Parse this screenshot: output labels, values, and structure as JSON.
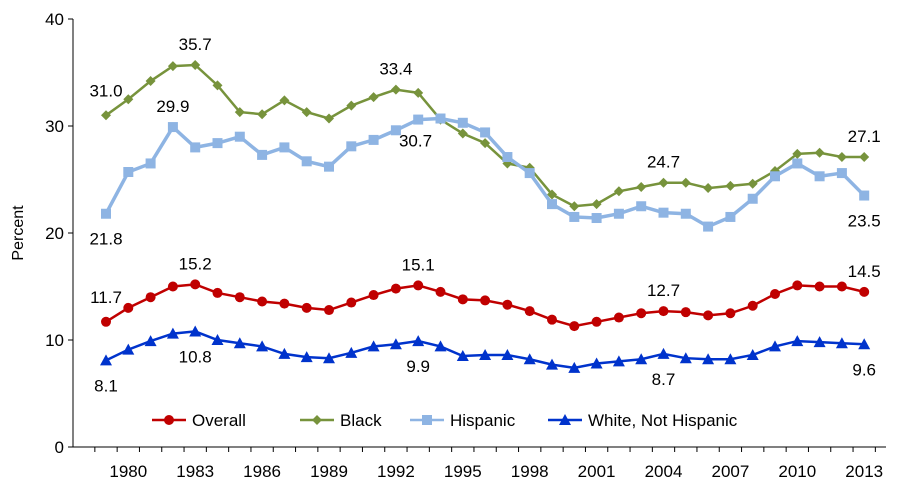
{
  "chart_data": {
    "type": "line",
    "title": "",
    "xlabel": "",
    "ylabel": "Percent",
    "ylim": [
      0,
      40
    ],
    "yticks": [
      0,
      10,
      20,
      30,
      40
    ],
    "xtick_labels": [
      "1980",
      "1983",
      "1986",
      "1989",
      "1992",
      "1995",
      "1998",
      "2001",
      "2004",
      "2007",
      "2010",
      "2013"
    ],
    "x": [
      1979,
      1980,
      1981,
      1982,
      1983,
      1984,
      1985,
      1986,
      1987,
      1988,
      1989,
      1990,
      1991,
      1992,
      1993,
      1994,
      1995,
      1996,
      1997,
      1998,
      1999,
      2000,
      2001,
      2002,
      2003,
      2004,
      2005,
      2006,
      2007,
      2008,
      2009,
      2010,
      2011,
      2012,
      2013
    ],
    "grid": false,
    "legend_position": "bottom",
    "series": [
      {
        "name": "Overall",
        "color": "#C00000",
        "marker": "circle",
        "values": [
          11.7,
          13.0,
          14.0,
          15.0,
          15.2,
          14.4,
          14.0,
          13.6,
          13.4,
          13.0,
          12.8,
          13.5,
          14.2,
          14.8,
          15.1,
          14.5,
          13.8,
          13.7,
          13.3,
          12.7,
          11.9,
          11.3,
          11.7,
          12.1,
          12.5,
          12.7,
          12.6,
          12.3,
          12.5,
          13.2,
          14.3,
          15.1,
          15.0,
          15.0,
          14.5
        ],
        "labels": [
          {
            "year": 1979,
            "text": "11.7",
            "pos": "above"
          },
          {
            "year": 1983,
            "text": "15.2",
            "pos": "above"
          },
          {
            "year": 1993,
            "text": "15.1",
            "pos": "above"
          },
          {
            "year": 2004,
            "text": "12.7",
            "pos": "above"
          },
          {
            "year": 2013,
            "text": "14.5",
            "pos": "above"
          }
        ]
      },
      {
        "name": "Black",
        "color": "#77933C",
        "marker": "diamond",
        "values": [
          31.0,
          32.5,
          34.2,
          35.6,
          35.7,
          33.8,
          31.3,
          31.1,
          32.4,
          31.3,
          30.7,
          31.9,
          32.7,
          33.4,
          33.1,
          30.6,
          29.3,
          28.4,
          26.5,
          26.1,
          23.6,
          22.5,
          22.7,
          23.9,
          24.3,
          24.7,
          24.7,
          24.2,
          24.4,
          24.6,
          25.8,
          27.4,
          27.5,
          27.1,
          27.1
        ],
        "labels": [
          {
            "year": 1979,
            "text": "31.0",
            "pos": "above"
          },
          {
            "year": 1983,
            "text": "35.7",
            "pos": "above"
          },
          {
            "year": 1992,
            "text": "33.4",
            "pos": "above"
          },
          {
            "year": 2004,
            "text": "24.7",
            "pos": "above"
          },
          {
            "year": 2013,
            "text": "27.1",
            "pos": "above"
          }
        ]
      },
      {
        "name": "Hispanic",
        "color": "#8EB4E3",
        "marker": "square",
        "values": [
          21.8,
          25.7,
          26.5,
          29.9,
          28.0,
          28.4,
          29.0,
          27.3,
          28.0,
          26.7,
          26.2,
          28.1,
          28.7,
          29.6,
          30.6,
          30.7,
          30.3,
          29.4,
          27.1,
          25.6,
          22.7,
          21.5,
          21.4,
          21.8,
          22.5,
          21.9,
          21.8,
          20.6,
          21.5,
          23.2,
          25.3,
          26.5,
          25.3,
          25.6,
          23.5
        ],
        "labels": [
          {
            "year": 1979,
            "text": "21.8",
            "pos": "below"
          },
          {
            "year": 1982,
            "text": "29.9",
            "pos": "above"
          },
          {
            "year": 1994,
            "text": "30.7",
            "pos": "below-left"
          },
          {
            "year": 2013,
            "text": "23.5",
            "pos": "below"
          }
        ]
      },
      {
        "name": "White, Not Hispanic",
        "color": "#0033CC",
        "marker": "triangle",
        "values": [
          8.1,
          9.1,
          9.9,
          10.6,
          10.8,
          10.0,
          9.7,
          9.4,
          8.7,
          8.4,
          8.3,
          8.8,
          9.4,
          9.6,
          9.9,
          9.4,
          8.5,
          8.6,
          8.6,
          8.2,
          7.7,
          7.4,
          7.8,
          8.0,
          8.2,
          8.7,
          8.3,
          8.2,
          8.2,
          8.6,
          9.4,
          9.9,
          9.8,
          9.7,
          9.6
        ],
        "labels": [
          {
            "year": 1979,
            "text": "8.1",
            "pos": "below"
          },
          {
            "year": 1983,
            "text": "10.8",
            "pos": "below"
          },
          {
            "year": 1993,
            "text": "9.9",
            "pos": "below"
          },
          {
            "year": 2004,
            "text": "8.7",
            "pos": "below"
          },
          {
            "year": 2013,
            "text": "9.6",
            "pos": "below"
          }
        ]
      }
    ]
  }
}
